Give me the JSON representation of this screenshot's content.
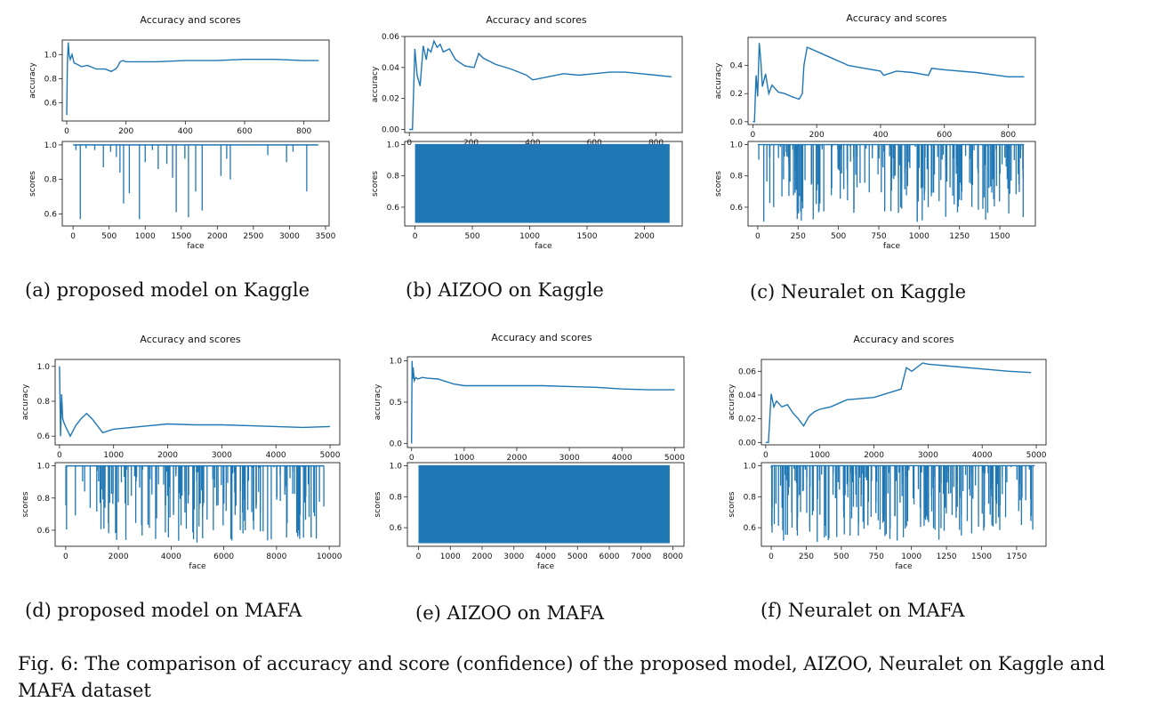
{
  "figure": {
    "caption_prefix": "Fig. 6:",
    "caption_text": "The comparison of accuracy and score (confidence) of the proposed model, AIZOO, Neuralet on Kaggle and MAFA dataset",
    "line_color": "#1f77b4"
  },
  "chart_data": [
    {
      "id": "a",
      "caption": "(a) proposed model on Kaggle",
      "title": "Accuracy and scores",
      "type": "line",
      "top": {
        "ylabel": "accuracy",
        "xlim": [
          -15,
          885
        ],
        "ylim": [
          0.45,
          1.12
        ],
        "xticks": [
          0,
          200,
          400,
          600,
          800
        ],
        "xtick_labels": [
          "0",
          "200",
          "400",
          "600",
          "800"
        ],
        "yticks": [
          0.6,
          0.8,
          1.0
        ],
        "ytick_labels": [
          "0.6",
          "0.8",
          "1.0"
        ],
        "x": [
          0,
          2,
          5,
          8,
          12,
          18,
          25,
          35,
          50,
          70,
          100,
          130,
          150,
          165,
          172,
          180,
          190,
          200,
          250,
          300,
          400,
          500,
          600,
          700,
          800,
          850
        ],
        "y": [
          0.5,
          0.9,
          1.1,
          1.0,
          0.96,
          1.0,
          0.93,
          0.92,
          0.9,
          0.91,
          0.88,
          0.88,
          0.86,
          0.88,
          0.9,
          0.94,
          0.95,
          0.94,
          0.94,
          0.94,
          0.95,
          0.95,
          0.96,
          0.96,
          0.95,
          0.95
        ]
      },
      "bottom": {
        "xlabel": "face",
        "ylabel": "scores",
        "xlim": [
          -150,
          3550
        ],
        "ylim": [
          0.53,
          1.02
        ],
        "xticks": [
          0,
          500,
          1000,
          1500,
          2000,
          2500,
          3000,
          3500
        ],
        "xtick_labels": [
          "0",
          "500",
          "1000",
          "1500",
          "2000",
          "2500",
          "3000",
          "3500"
        ],
        "yticks": [
          0.6,
          0.8,
          1.0
        ],
        "ytick_labels": [
          "0.6",
          "0.8",
          "1.0"
        ],
        "baseline": 1.0,
        "xmax": 3400,
        "x": [
          40,
          100,
          180,
          300,
          420,
          520,
          600,
          650,
          700,
          780,
          920,
          1000,
          1100,
          1180,
          1300,
          1380,
          1430,
          1550,
          1600,
          1700,
          1790,
          2050,
          2130,
          2180,
          2700,
          2960,
          3050,
          3240
        ],
        "y": [
          0.97,
          0.57,
          0.98,
          0.97,
          0.87,
          0.96,
          0.93,
          0.84,
          0.66,
          0.72,
          0.57,
          0.9,
          0.97,
          0.86,
          0.89,
          0.81,
          0.61,
          0.92,
          0.58,
          0.73,
          0.62,
          0.82,
          0.92,
          0.8,
          0.94,
          0.9,
          0.96,
          0.73
        ]
      }
    },
    {
      "id": "b",
      "caption": "(b) AIZOO on Kaggle",
      "title": "Accuracy and scores",
      "type": "line",
      "top": {
        "ylabel": "accuracy",
        "xlim": [
          -15,
          885
        ],
        "ylim": [
          -0.002,
          0.06
        ],
        "xticks": [
          0,
          200,
          400,
          600,
          800
        ],
        "xtick_labels": [
          "0",
          "200",
          "400",
          "600",
          "800"
        ],
        "yticks": [
          0.0,
          0.02,
          0.04,
          0.06
        ],
        "ytick_labels": [
          "0.00",
          "0.02",
          "0.04",
          "0.06"
        ],
        "x": [
          0,
          10,
          18,
          25,
          35,
          45,
          55,
          60,
          70,
          80,
          90,
          100,
          110,
          130,
          150,
          180,
          210,
          225,
          240,
          280,
          330,
          380,
          400,
          450,
          500,
          550,
          600,
          650,
          700,
          750,
          800,
          850
        ],
        "y": [
          0.0,
          0.0,
          0.052,
          0.035,
          0.028,
          0.054,
          0.045,
          0.052,
          0.05,
          0.057,
          0.053,
          0.055,
          0.05,
          0.052,
          0.045,
          0.041,
          0.04,
          0.049,
          0.046,
          0.042,
          0.039,
          0.035,
          0.032,
          0.034,
          0.036,
          0.035,
          0.036,
          0.037,
          0.037,
          0.036,
          0.035,
          0.034
        ]
      },
      "bottom": {
        "xlabel": "face",
        "ylabel": "scores",
        "xlim": [
          -90,
          2330
        ],
        "ylim": [
          0.48,
          1.02
        ],
        "xticks": [
          0,
          500,
          1000,
          1500,
          2000
        ],
        "xtick_labels": [
          "0",
          "500",
          "1000",
          "1500",
          "2000"
        ],
        "yticks": [
          0.6,
          0.8,
          1.0
        ],
        "ytick_labels": [
          "0.6",
          "0.8",
          "1.0"
        ],
        "baseline": 1.0,
        "xmax": 2220,
        "band_low": 0.5,
        "band_high": 1.0
      }
    },
    {
      "id": "c",
      "caption": "(c) Neuralet on Kaggle",
      "title": "Accuracy and scores",
      "type": "line",
      "top": {
        "ylabel": "accuracy",
        "xlim": [
          -15,
          885
        ],
        "ylim": [
          -0.02,
          0.6
        ],
        "xticks": [
          0,
          200,
          400,
          600,
          800
        ],
        "xtick_labels": [
          "0",
          "200",
          "400",
          "600",
          "800"
        ],
        "yticks": [
          0.0,
          0.2,
          0.4
        ],
        "ytick_labels": [
          "0.0",
          "0.2",
          "0.4"
        ],
        "x": [
          0,
          5,
          10,
          15,
          20,
          25,
          30,
          40,
          50,
          60,
          80,
          100,
          120,
          145,
          155,
          160,
          170,
          200,
          250,
          300,
          350,
          400,
          410,
          450,
          500,
          550,
          560,
          600,
          700,
          800,
          850
        ],
        "y": [
          0.0,
          0.0,
          0.33,
          0.18,
          0.56,
          0.43,
          0.25,
          0.34,
          0.2,
          0.26,
          0.21,
          0.2,
          0.18,
          0.16,
          0.2,
          0.4,
          0.53,
          0.5,
          0.45,
          0.4,
          0.38,
          0.36,
          0.33,
          0.36,
          0.35,
          0.33,
          0.38,
          0.37,
          0.35,
          0.32,
          0.32
        ]
      },
      "bottom": {
        "xlabel": "face",
        "ylabel": "scores",
        "xlim": [
          -60,
          1720
        ],
        "ylim": [
          0.48,
          1.02
        ],
        "xticks": [
          0,
          250,
          500,
          750,
          1000,
          1250,
          1500
        ],
        "xtick_labels": [
          "0",
          "250",
          "500",
          "750",
          "1000",
          "1250",
          "1500"
        ],
        "yticks": [
          0.6,
          0.8,
          1.0
        ],
        "ytick_labels": [
          "0.6",
          "0.8",
          "1.0"
        ],
        "baseline": 1.0,
        "xmax": 1650,
        "spike_count": 210,
        "spike_low": 0.5,
        "spike_seed": 31
      }
    },
    {
      "id": "d",
      "caption": "(d) proposed model on MAFA",
      "title": "Accuracy and scores",
      "type": "line",
      "top": {
        "ylabel": "accuracy",
        "xlim": [
          -80,
          5180
        ],
        "ylim": [
          0.55,
          1.04
        ],
        "xticks": [
          0,
          1000,
          2000,
          3000,
          4000,
          5000
        ],
        "xtick_labels": [
          "0",
          "1000",
          "2000",
          "3000",
          "4000",
          "5000"
        ],
        "yticks": [
          0.6,
          0.8,
          1.0
        ],
        "ytick_labels": [
          "0.6",
          "0.8",
          "1.0"
        ],
        "x": [
          0,
          20,
          40,
          60,
          80,
          120,
          200,
          300,
          400,
          500,
          600,
          700,
          800,
          900,
          1000,
          1500,
          2000,
          2500,
          3000,
          3500,
          4000,
          4500,
          5000
        ],
        "y": [
          1.0,
          0.6,
          0.84,
          0.7,
          0.68,
          0.65,
          0.6,
          0.66,
          0.7,
          0.73,
          0.7,
          0.66,
          0.62,
          0.63,
          0.64,
          0.655,
          0.67,
          0.665,
          0.665,
          0.66,
          0.655,
          0.65,
          0.655
        ]
      },
      "bottom": {
        "xlabel": "face",
        "ylabel": "scores",
        "xlim": [
          -400,
          10400
        ],
        "ylim": [
          0.5,
          1.02
        ],
        "xticks": [
          0,
          2000,
          4000,
          6000,
          8000,
          10000
        ],
        "xtick_labels": [
          "0",
          "2000",
          "4000",
          "6000",
          "8000",
          "10000"
        ],
        "yticks": [
          0.6,
          0.8,
          1.0
        ],
        "ytick_labels": [
          "0.6",
          "0.8",
          "1.0"
        ],
        "baseline": 1.0,
        "xmax": 9800,
        "spike_count": 180,
        "spike_low": 0.52,
        "spike_seed": 47
      }
    },
    {
      "id": "e",
      "caption": "(e) AIZOO on MAFA",
      "title": "Accuracy and scores",
      "type": "line",
      "top": {
        "ylabel": "accuracy",
        "xlim": [
          -80,
          5180
        ],
        "ylim": [
          -0.05,
          1.05
        ],
        "xticks": [
          0,
          1000,
          2000,
          3000,
          4000,
          5000
        ],
        "xtick_labels": [
          "0",
          "1000",
          "2000",
          "3000",
          "4000",
          "5000"
        ],
        "yticks": [
          0.0,
          0.5,
          1.0
        ],
        "ytick_labels": [
          "0.0",
          "0.5",
          "1.0"
        ],
        "x": [
          0,
          10,
          20,
          30,
          50,
          80,
          120,
          200,
          300,
          500,
          800,
          1000,
          1500,
          2000,
          2500,
          3000,
          3500,
          4000,
          4500,
          5000
        ],
        "y": [
          0.0,
          1.0,
          0.78,
          0.92,
          0.76,
          0.8,
          0.78,
          0.8,
          0.79,
          0.78,
          0.72,
          0.7,
          0.7,
          0.7,
          0.7,
          0.69,
          0.68,
          0.66,
          0.65,
          0.65
        ]
      },
      "bottom": {
        "xlabel": "face",
        "ylabel": "scores",
        "xlim": [
          -350,
          8350
        ],
        "ylim": [
          0.48,
          1.02
        ],
        "xticks": [
          0,
          1000,
          2000,
          3000,
          4000,
          5000,
          6000,
          7000,
          8000
        ],
        "xtick_labels": [
          "0",
          "1000",
          "2000",
          "3000",
          "4000",
          "5000",
          "6000",
          "7000",
          "8000"
        ],
        "yticks": [
          0.6,
          0.8,
          1.0
        ],
        "ytick_labels": [
          "0.6",
          "0.8",
          "1.0"
        ],
        "baseline": 1.0,
        "xmax": 7900,
        "band_low": 0.5,
        "band_high": 1.0
      }
    },
    {
      "id": "f",
      "caption": "(f) Neuralet on MAFA",
      "title": "Accuracy and scores",
      "type": "line",
      "top": {
        "ylabel": "accuracy",
        "xlim": [
          -80,
          5180
        ],
        "ylim": [
          -0.002,
          0.07
        ],
        "xticks": [
          0,
          1000,
          2000,
          3000,
          4000,
          5000
        ],
        "xtick_labels": [
          "0",
          "1000",
          "2000",
          "3000",
          "4000",
          "5000"
        ],
        "yticks": [
          0.0,
          0.02,
          0.04,
          0.06
        ],
        "ytick_labels": [
          "0.00",
          "0.02",
          "0.04",
          "0.06"
        ],
        "x": [
          0,
          50,
          100,
          150,
          200,
          300,
          400,
          500,
          600,
          700,
          800,
          900,
          1000,
          1200,
          1500,
          2000,
          2500,
          2600,
          2700,
          2900,
          3000,
          3500,
          4000,
          4500,
          4900
        ],
        "y": [
          0.0,
          0.0,
          0.041,
          0.03,
          0.035,
          0.03,
          0.032,
          0.025,
          0.02,
          0.014,
          0.022,
          0.026,
          0.028,
          0.03,
          0.036,
          0.038,
          0.045,
          0.063,
          0.06,
          0.067,
          0.066,
          0.064,
          0.062,
          0.06,
          0.059
        ]
      },
      "bottom": {
        "xlabel": "face",
        "ylabel": "scores",
        "xlim": [
          -70,
          1960
        ],
        "ylim": [
          0.48,
          1.02
        ],
        "xticks": [
          0,
          250,
          500,
          750,
          1000,
          1250,
          1500,
          1750
        ],
        "xtick_labels": [
          "0",
          "250",
          "500",
          "750",
          "1000",
          "1250",
          "1500",
          "1750"
        ],
        "yticks": [
          0.6,
          0.8,
          1.0
        ],
        "ytick_labels": [
          "0.6",
          "0.8",
          "1.0"
        ],
        "baseline": 1.0,
        "xmax": 1880,
        "spike_count": 230,
        "spike_low": 0.5,
        "spike_seed": 59
      }
    }
  ]
}
